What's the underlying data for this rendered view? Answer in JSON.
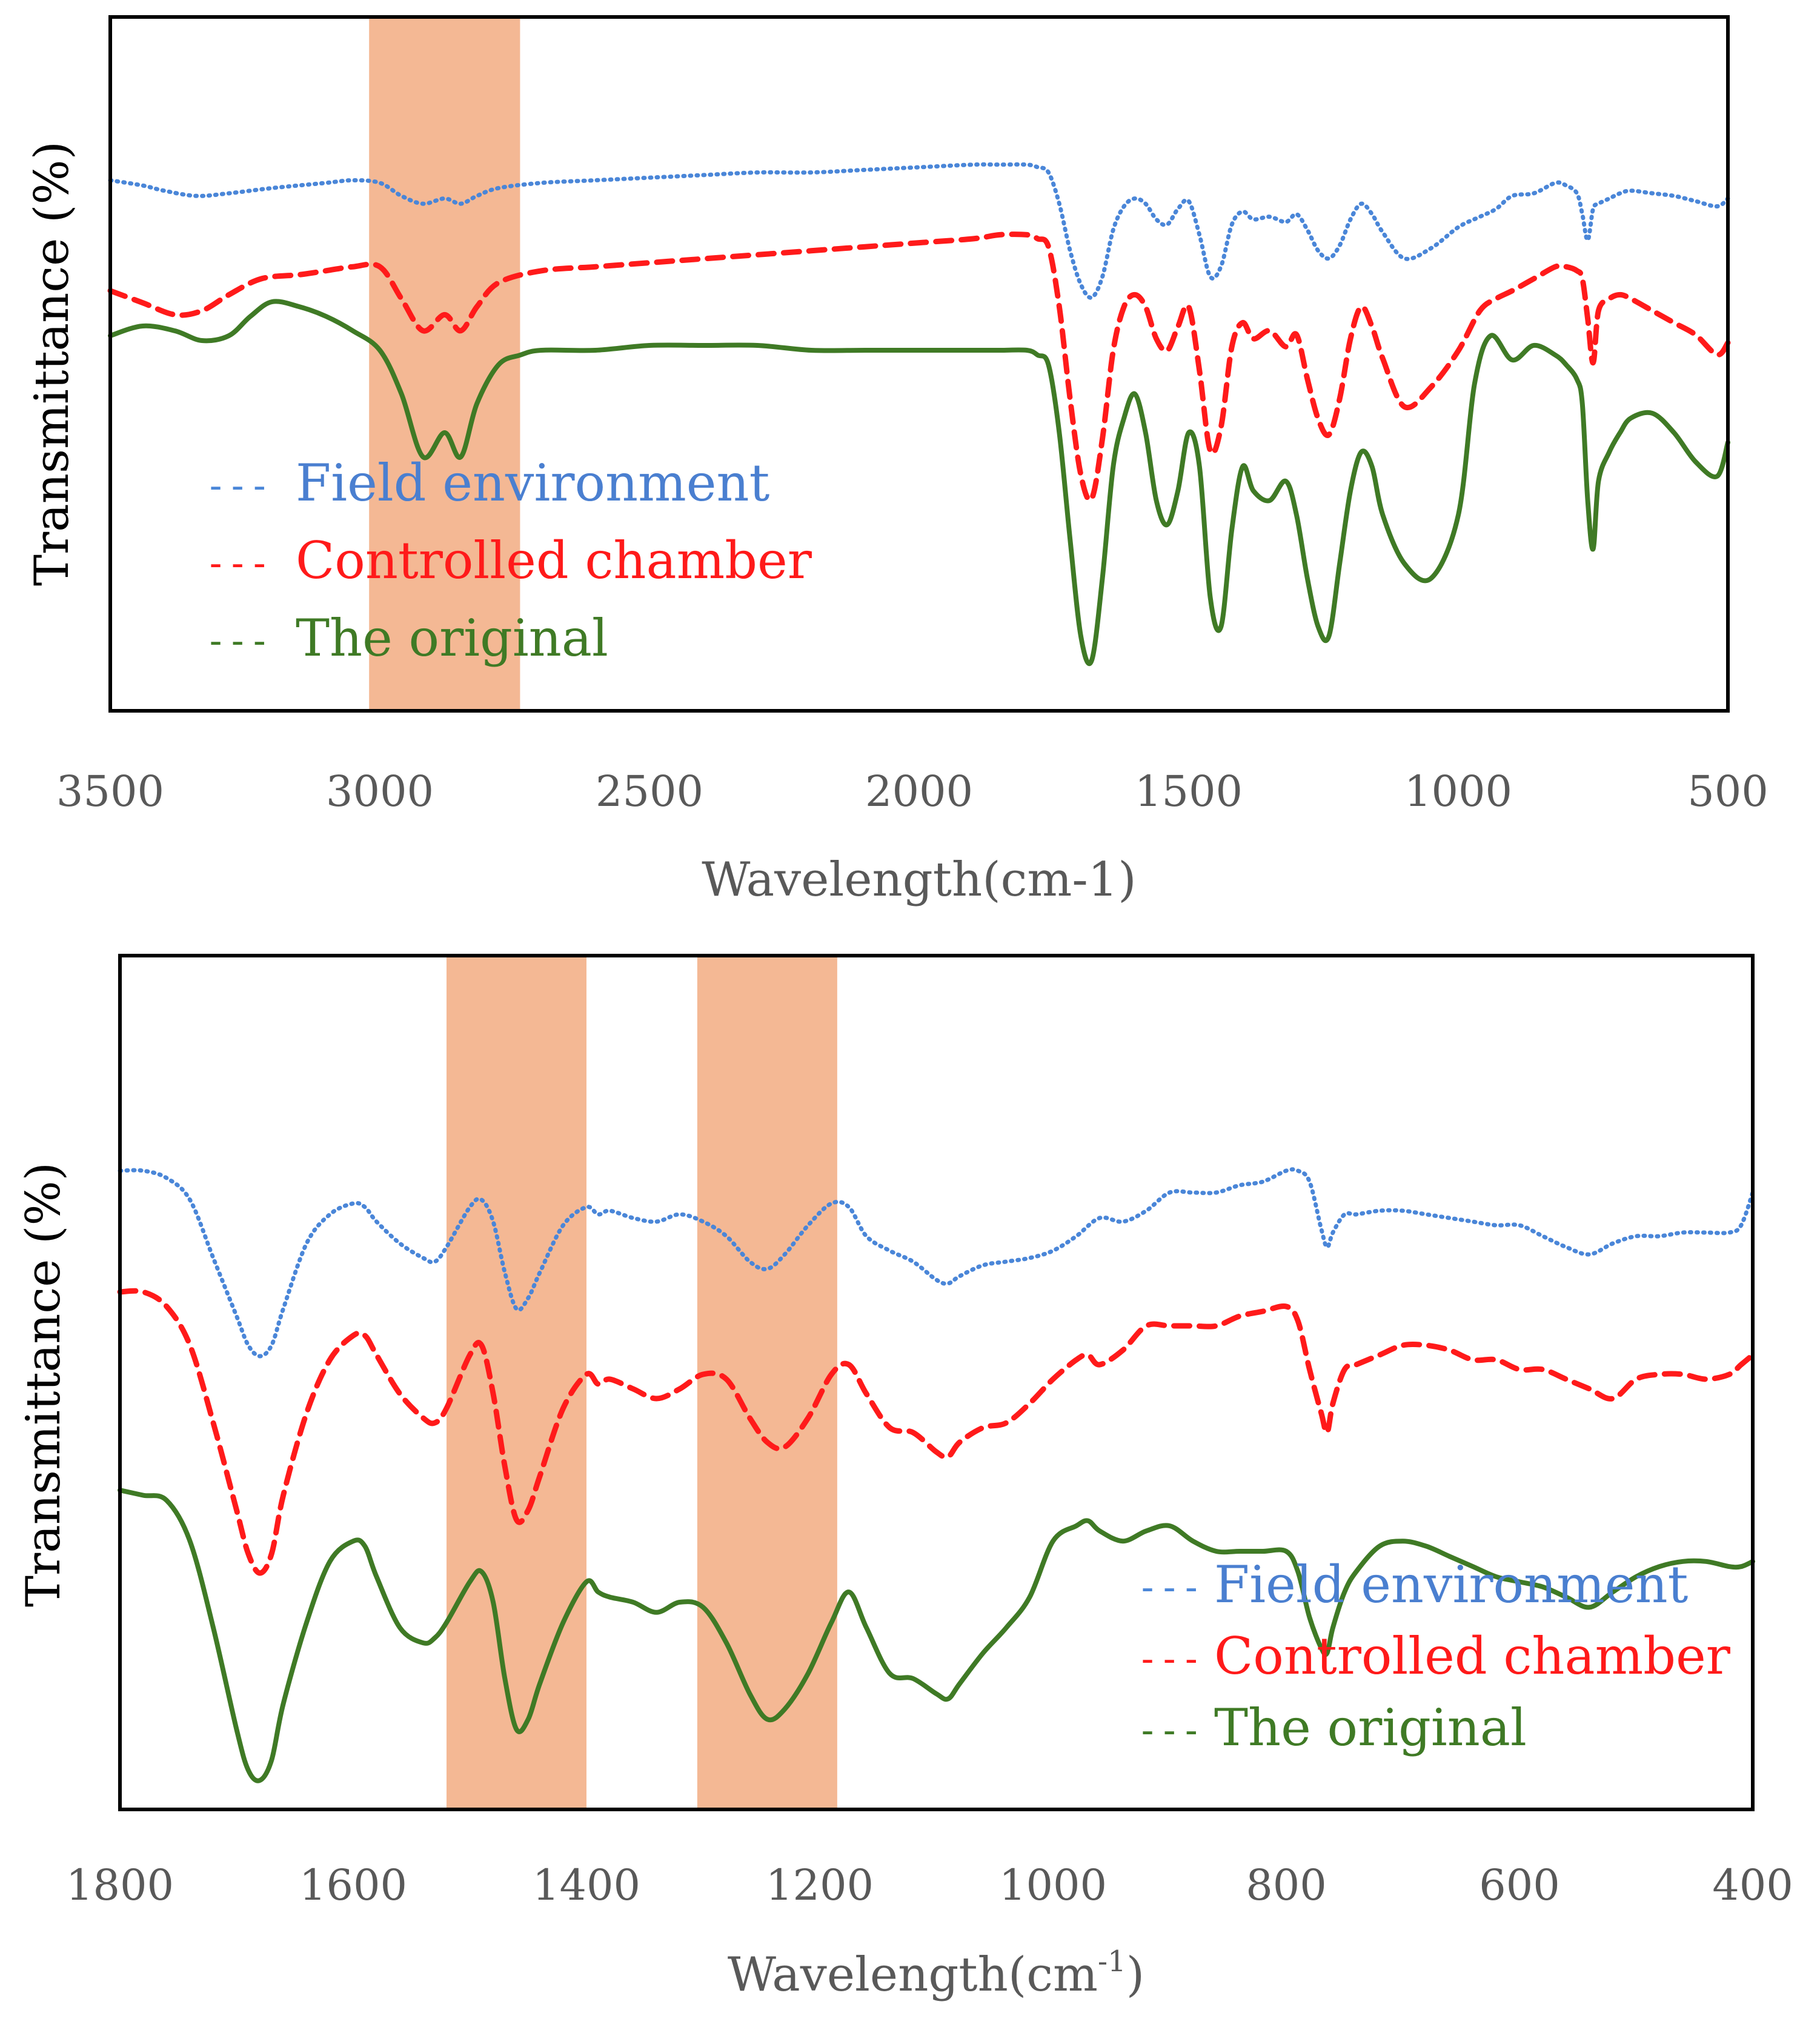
{
  "colors": {
    "field": "#4a86d8",
    "chamber": "#ff1a1a",
    "original": "#3f7a25",
    "highlight": "#f0a070"
  },
  "chart_data": [
    {
      "type": "line",
      "xlabel": "Wavelength(cm-1)",
      "ylabel": "Transmittance (%)",
      "xlim": [
        3500,
        500
      ],
      "ylim": [
        0,
        100
      ],
      "xticks": [
        3500,
        3000,
        2500,
        2000,
        1500,
        1000,
        500
      ],
      "highlight_bands": [
        [
          3020,
          2740
        ]
      ],
      "legend": {
        "position": "bottom-left",
        "entries": [
          {
            "marker": "---",
            "label": "Field environment"
          },
          {
            "marker": "---",
            "label": "Controlled chamber"
          },
          {
            "marker": "---",
            "label": "The original"
          }
        ]
      },
      "series": [
        {
          "name": "Field environment",
          "style": "dotted",
          "x": [
            3500,
            3440,
            3400,
            3340,
            3280,
            3200,
            3100,
            3050,
            3000,
            2960,
            2920,
            2880,
            2850,
            2820,
            2780,
            2700,
            2600,
            2500,
            2400,
            2300,
            2200,
            2100,
            2000,
            1900,
            1850,
            1800,
            1780,
            1760,
            1740,
            1720,
            1700,
            1680,
            1660,
            1640,
            1620,
            1600,
            1580,
            1560,
            1540,
            1520,
            1500,
            1480,
            1460,
            1440,
            1420,
            1400,
            1380,
            1350,
            1320,
            1300,
            1280,
            1260,
            1240,
            1220,
            1200,
            1180,
            1160,
            1140,
            1100,
            1050,
            1000,
            960,
            930,
            900,
            860,
            820,
            800,
            780,
            770,
            760,
            750,
            740,
            720,
            700,
            680,
            640,
            600,
            560,
            520,
            500
          ],
          "y": [
            85,
            83,
            81,
            79,
            80,
            82,
            84,
            85,
            84,
            79,
            76,
            78,
            76,
            79,
            82,
            84,
            85,
            86,
            87,
            88,
            88,
            89,
            90,
            91,
            91,
            91,
            90,
            88,
            76,
            58,
            45,
            40,
            48,
            66,
            75,
            78,
            76,
            70,
            68,
            74,
            77,
            64,
            48,
            52,
            68,
            73,
            70,
            71,
            69,
            72,
            66,
            58,
            55,
            60,
            70,
            76,
            72,
            65,
            55,
            59,
            67,
            71,
            74,
            79,
            80,
            84,
            83,
            80,
            72,
            62,
            74,
            76,
            78,
            80,
            81,
            80,
            79,
            77,
            75,
            78
          ]
        },
        {
          "name": "Controlled chamber",
          "style": "dashed",
          "x": [
            3500,
            3440,
            3380,
            3330,
            3280,
            3220,
            3150,
            3100,
            3050,
            3000,
            2960,
            2920,
            2880,
            2850,
            2820,
            2780,
            2700,
            2600,
            2500,
            2400,
            2300,
            2200,
            2100,
            2000,
            1900,
            1850,
            1800,
            1780,
            1760,
            1740,
            1720,
            1700,
            1680,
            1660,
            1640,
            1620,
            1600,
            1580,
            1560,
            1540,
            1520,
            1500,
            1480,
            1460,
            1440,
            1420,
            1400,
            1380,
            1350,
            1320,
            1300,
            1280,
            1260,
            1240,
            1220,
            1200,
            1180,
            1160,
            1140,
            1100,
            1050,
            1000,
            960,
            930,
            900,
            860,
            820,
            800,
            780,
            770,
            760,
            750,
            740,
            720,
            700,
            680,
            640,
            600,
            560,
            520,
            500
          ],
          "y": [
            72,
            69,
            66,
            67,
            71,
            75,
            76,
            77,
            78,
            78,
            70,
            62,
            66,
            62,
            68,
            74,
            77,
            78,
            79,
            80,
            81,
            82,
            83,
            84,
            85,
            86,
            86,
            85,
            83,
            68,
            45,
            26,
            20,
            35,
            57,
            68,
            71,
            68,
            60,
            57,
            63,
            68,
            52,
            32,
            38,
            58,
            64,
            60,
            62,
            58,
            61,
            50,
            40,
            36,
            45,
            60,
            68,
            63,
            55,
            43,
            48,
            57,
            67,
            70,
            72,
            75,
            78,
            78,
            77,
            75,
            65,
            54,
            67,
            70,
            71,
            70,
            67,
            64,
            61,
            56,
            59
          ]
        },
        {
          "name": "The original",
          "style": "solid",
          "x": [
            3500,
            3440,
            3380,
            3330,
            3280,
            3240,
            3200,
            3150,
            3100,
            3050,
            3000,
            2960,
            2920,
            2880,
            2850,
            2820,
            2780,
            2740,
            2700,
            2600,
            2500,
            2400,
            2300,
            2200,
            2100,
            2000,
            1900,
            1850,
            1800,
            1780,
            1760,
            1740,
            1720,
            1700,
            1680,
            1660,
            1640,
            1620,
            1600,
            1580,
            1560,
            1540,
            1520,
            1500,
            1480,
            1460,
            1440,
            1420,
            1400,
            1380,
            1350,
            1320,
            1300,
            1280,
            1260,
            1240,
            1220,
            1200,
            1180,
            1160,
            1140,
            1100,
            1050,
            1000,
            970,
            940,
            900,
            860,
            820,
            800,
            780,
            770,
            760,
            750,
            740,
            720,
            700,
            680,
            640,
            600,
            560,
            520,
            500
          ],
          "y": [
            72,
            74,
            73,
            71,
            72,
            76,
            79,
            78,
            76,
            73,
            69,
            60,
            47,
            52,
            47,
            58,
            66,
            68,
            69,
            69,
            70,
            70,
            70,
            69,
            69,
            69,
            69,
            69,
            69,
            68,
            66,
            52,
            30,
            10,
            5,
            22,
            45,
            55,
            60,
            52,
            38,
            33,
            40,
            52,
            45,
            18,
            12,
            32,
            45,
            40,
            38,
            42,
            35,
            22,
            12,
            10,
            25,
            40,
            48,
            45,
            35,
            25,
            22,
            35,
            62,
            72,
            67,
            70,
            68,
            66,
            63,
            58,
            38,
            28,
            42,
            48,
            52,
            55,
            56,
            52,
            46,
            43,
            50
          ]
        }
      ]
    },
    {
      "type": "line",
      "xlabel": "Wavelength(cm",
      "xlabel_sup": "-1",
      "xlabel_end": ")",
      "ylabel": "Transmittance (%)",
      "xlim": [
        1800,
        400
      ],
      "ylim": [
        0,
        100
      ],
      "xticks": [
        1800,
        1600,
        1400,
        1200,
        1000,
        800,
        600,
        400
      ],
      "highlight_bands": [
        [
          1520,
          1400
        ],
        [
          1305,
          1185
        ]
      ],
      "legend": {
        "position": "bottom-right",
        "entries": [
          {
            "marker": "---",
            "label": "Field environment"
          },
          {
            "marker": "---",
            "label": "Controlled chamber"
          },
          {
            "marker": "---",
            "label": "The original"
          }
        ]
      },
      "series": [
        {
          "name": "Field environment",
          "style": "dotted",
          "x": [
            1800,
            1780,
            1760,
            1740,
            1720,
            1700,
            1690,
            1680,
            1670,
            1660,
            1640,
            1620,
            1600,
            1590,
            1580,
            1560,
            1540,
            1530,
            1520,
            1500,
            1490,
            1480,
            1470,
            1460,
            1450,
            1440,
            1420,
            1400,
            1390,
            1380,
            1360,
            1340,
            1320,
            1300,
            1280,
            1260,
            1245,
            1230,
            1210,
            1190,
            1175,
            1160,
            1140,
            1120,
            1100,
            1090,
            1080,
            1060,
            1040,
            1020,
            1000,
            980,
            960,
            940,
            920,
            900,
            880,
            860,
            840,
            820,
            800,
            790,
            780,
            770,
            765,
            760,
            750,
            740,
            720,
            700,
            680,
            660,
            640,
            620,
            600,
            580,
            560,
            540,
            520,
            500,
            480,
            460,
            440,
            420,
            410,
            400
          ],
          "y": [
            78,
            78,
            76,
            70,
            54,
            38,
            30,
            27,
            30,
            40,
            58,
            66,
            69,
            68,
            64,
            58,
            54,
            53,
            57,
            68,
            70,
            64,
            50,
            40,
            43,
            50,
            63,
            68,
            66,
            67,
            65,
            64,
            66,
            64,
            60,
            53,
            51,
            55,
            63,
            69,
            68,
            60,
            56,
            53,
            48,
            47,
            49,
            52,
            53,
            54,
            56,
            60,
            65,
            64,
            67,
            72,
            72,
            72,
            74,
            75,
            78,
            78,
            75,
            62,
            57,
            61,
            66,
            66,
            67,
            67,
            66,
            65,
            64,
            63,
            63,
            60,
            57,
            55,
            58,
            60,
            60,
            61,
            61,
            61,
            63,
            72
          ]
        },
        {
          "name": "Controlled chamber",
          "style": "dashed",
          "x": [
            1800,
            1780,
            1760,
            1740,
            1720,
            1700,
            1690,
            1680,
            1670,
            1660,
            1640,
            1620,
            1600,
            1590,
            1580,
            1560,
            1540,
            1530,
            1520,
            1500,
            1490,
            1480,
            1470,
            1460,
            1450,
            1440,
            1420,
            1400,
            1390,
            1380,
            1360,
            1340,
            1320,
            1300,
            1280,
            1260,
            1245,
            1230,
            1210,
            1190,
            1175,
            1160,
            1140,
            1120,
            1100,
            1090,
            1080,
            1060,
            1040,
            1020,
            1000,
            980,
            970,
            960,
            940,
            920,
            900,
            880,
            860,
            840,
            820,
            800,
            790,
            780,
            770,
            765,
            760,
            750,
            740,
            720,
            700,
            680,
            660,
            640,
            620,
            600,
            580,
            560,
            540,
            520,
            500,
            480,
            460,
            440,
            420,
            410,
            400
          ],
          "y": [
            71,
            71,
            68,
            60,
            44,
            26,
            17,
            13,
            17,
            29,
            46,
            57,
            62,
            62,
            58,
            50,
            45,
            44,
            47,
            58,
            60,
            50,
            35,
            24,
            26,
            33,
            47,
            54,
            52,
            53,
            51,
            49,
            51,
            54,
            53,
            45,
            40,
            39,
            45,
            54,
            56,
            50,
            43,
            42,
            38,
            37,
            40,
            43,
            44,
            48,
            53,
            57,
            58,
            56,
            59,
            64,
            64,
            64,
            64,
            66,
            67,
            68,
            65,
            55,
            46,
            42,
            48,
            55,
            56,
            58,
            60,
            60,
            59,
            57,
            57,
            55,
            55,
            53,
            51,
            49,
            53,
            54,
            54,
            53,
            54,
            56,
            58
          ]
        },
        {
          "name": "The original",
          "style": "solid",
          "x": [
            1800,
            1780,
            1760,
            1740,
            1720,
            1700,
            1690,
            1680,
            1670,
            1660,
            1640,
            1620,
            1600,
            1590,
            1580,
            1560,
            1540,
            1530,
            1520,
            1500,
            1490,
            1480,
            1470,
            1460,
            1450,
            1440,
            1420,
            1400,
            1390,
            1380,
            1360,
            1340,
            1320,
            1300,
            1280,
            1260,
            1245,
            1230,
            1210,
            1190,
            1175,
            1160,
            1140,
            1120,
            1100,
            1090,
            1080,
            1060,
            1040,
            1020,
            1000,
            980,
            970,
            960,
            940,
            920,
            900,
            880,
            860,
            840,
            820,
            800,
            790,
            780,
            770,
            765,
            760,
            750,
            740,
            720,
            700,
            680,
            660,
            640,
            620,
            600,
            580,
            560,
            540,
            520,
            500,
            480,
            460,
            440,
            420,
            410,
            400
          ],
          "y": [
            62,
            61,
            60,
            52,
            35,
            15,
            7,
            5,
            9,
            20,
            36,
            48,
            52,
            51,
            45,
            35,
            32,
            33,
            36,
            44,
            46,
            40,
            25,
            15,
            17,
            24,
            36,
            44,
            42,
            41,
            40,
            38,
            40,
            39,
            32,
            22,
            17,
            19,
            26,
            36,
            42,
            35,
            26,
            25,
            22,
            21,
            24,
            30,
            35,
            41,
            52,
            55,
            56,
            54,
            52,
            54,
            55,
            52,
            50,
            50,
            50,
            50,
            46,
            37,
            31,
            30,
            35,
            42,
            46,
            51,
            52,
            51,
            49,
            47,
            45,
            44,
            43,
            41,
            39,
            42,
            45,
            47,
            48,
            48,
            47,
            47,
            48
          ]
        }
      ]
    }
  ]
}
